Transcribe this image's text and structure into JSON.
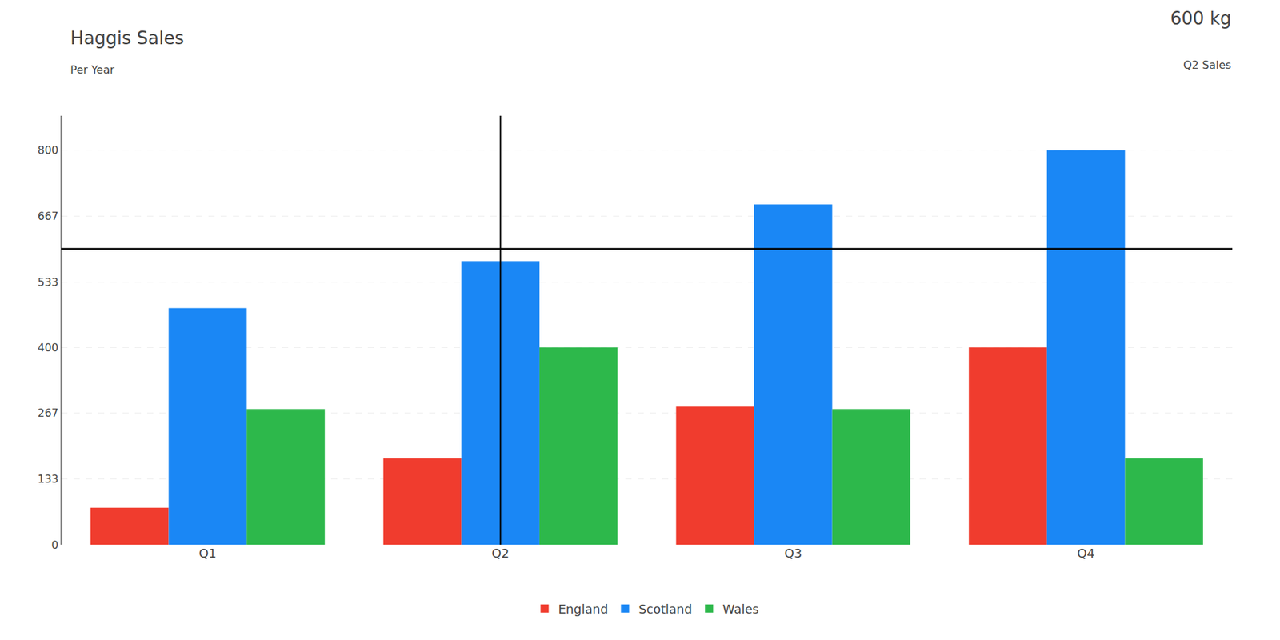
{
  "chart_data": {
    "type": "bar",
    "title": "Haggis Sales",
    "subtitle": "Per Year",
    "annotations": [
      "600 kg",
      "Q2 Sales"
    ],
    "categories": [
      "Q1",
      "Q2",
      "Q3",
      "Q4"
    ],
    "series": [
      {
        "name": "England",
        "color": "#f03c2e",
        "values": [
          75,
          175,
          280,
          400
        ]
      },
      {
        "name": "Scotland",
        "color": "#1a87f5",
        "values": [
          480,
          575,
          690,
          800
        ]
      },
      {
        "name": "Wales",
        "color": "#2db84b",
        "values": [
          275,
          400,
          275,
          175
        ]
      }
    ],
    "hline": 600,
    "vline": "Q2",
    "ylim": [
      0,
      870
    ],
    "yticks": [
      0,
      133,
      267,
      400,
      533,
      667,
      800
    ],
    "grid": true,
    "legend": "bottom"
  }
}
